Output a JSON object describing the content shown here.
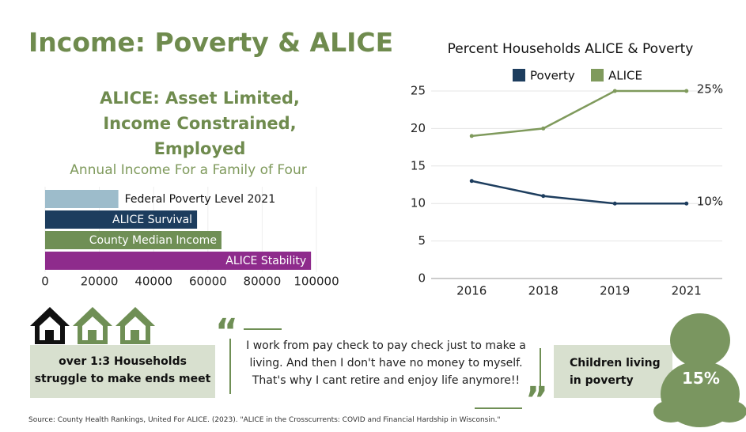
{
  "title": "Income: Poverty & ALICE",
  "subtitle": "ALICE: Asset Limited, Income Constrained, Employed",
  "chart_data": [
    {
      "type": "bar",
      "orientation": "horizontal",
      "title": "Annual Income For a Family of Four",
      "categories": [
        "Federal Poverty Level 2021",
        "ALICE Survival",
        "County Median Income",
        "ALICE Stability"
      ],
      "values": [
        27000,
        56000,
        65000,
        98000
      ],
      "colors": [
        "#9dbccb",
        "#1d3d5e",
        "#6f8f55",
        "#8e2b8c"
      ],
      "xlim": [
        0,
        100000
      ],
      "xticks": [
        0,
        20000,
        40000,
        60000,
        80000,
        100000
      ],
      "grid": true
    },
    {
      "type": "line",
      "title": "Percent Households ALICE & Poverty",
      "categories": [
        "2016",
        "2018",
        "2019",
        "2021"
      ],
      "series": [
        {
          "name": "Poverty",
          "color": "#1d3d5e",
          "values": [
            13,
            11,
            10,
            10
          ],
          "value_labels": [
            null,
            null,
            null,
            "10%"
          ]
        },
        {
          "name": "ALICE",
          "color": "#7f9a5c",
          "values": [
            19,
            20,
            25,
            25
          ],
          "value_labels": [
            null,
            null,
            null,
            "25%"
          ]
        }
      ],
      "ylim": [
        0,
        26.5
      ],
      "yticks": [
        0,
        5,
        10,
        15,
        20,
        25
      ],
      "grid": true,
      "legend": "top"
    }
  ],
  "callouts": {
    "households": "over 1:3 Households struggle to make ends meet",
    "quote": "I work from pay check to pay check just to make a living. And then I don't have no money to myself. That's why I cant retire and enjoy life anymore!!",
    "children": "Children living in poverty",
    "children_value": "15%"
  },
  "source": "Source: County Health Rankings, United For ALICE. (2023). \"ALICE in the Crosscurrents: COVID and Financial Hardship in Wisconsin.\""
}
